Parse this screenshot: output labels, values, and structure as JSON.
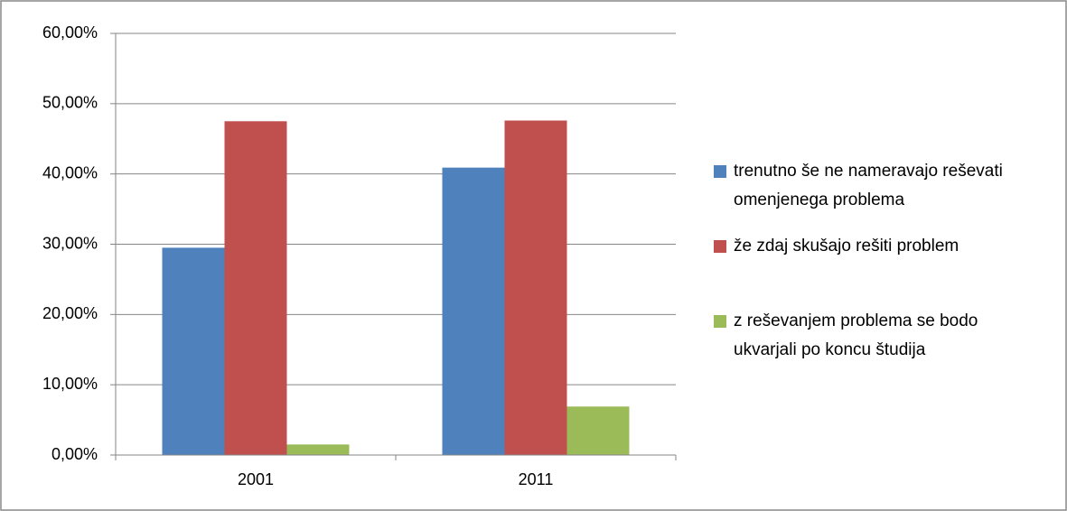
{
  "chart_data": {
    "type": "bar",
    "categories": [
      "2001",
      "2011"
    ],
    "series": [
      {
        "name": "trenutno še ne nameravajo reševati omenjenega problema",
        "color": "#4f81bd",
        "values": [
          29.5,
          40.9
        ]
      },
      {
        "name": "že zdaj skušajo rešiti problem",
        "color": "#c0504d",
        "values": [
          47.5,
          47.6
        ]
      },
      {
        "name": "z reševanjem problema se bodo ukvarjali po koncu študija",
        "color": "#9bbb59",
        "values": [
          1.5,
          6.9
        ]
      }
    ],
    "ylim": [
      0,
      60
    ],
    "yticks": [
      {
        "value": 0,
        "label": "0,00%"
      },
      {
        "value": 10,
        "label": "10,00%"
      },
      {
        "value": 20,
        "label": "20,00%"
      },
      {
        "value": 30,
        "label": "30,00%"
      },
      {
        "value": 40,
        "label": "40,00%"
      },
      {
        "value": 50,
        "label": "50,00%"
      },
      {
        "value": 60,
        "label": "60,00%"
      }
    ],
    "grid": true,
    "legend": "right"
  }
}
